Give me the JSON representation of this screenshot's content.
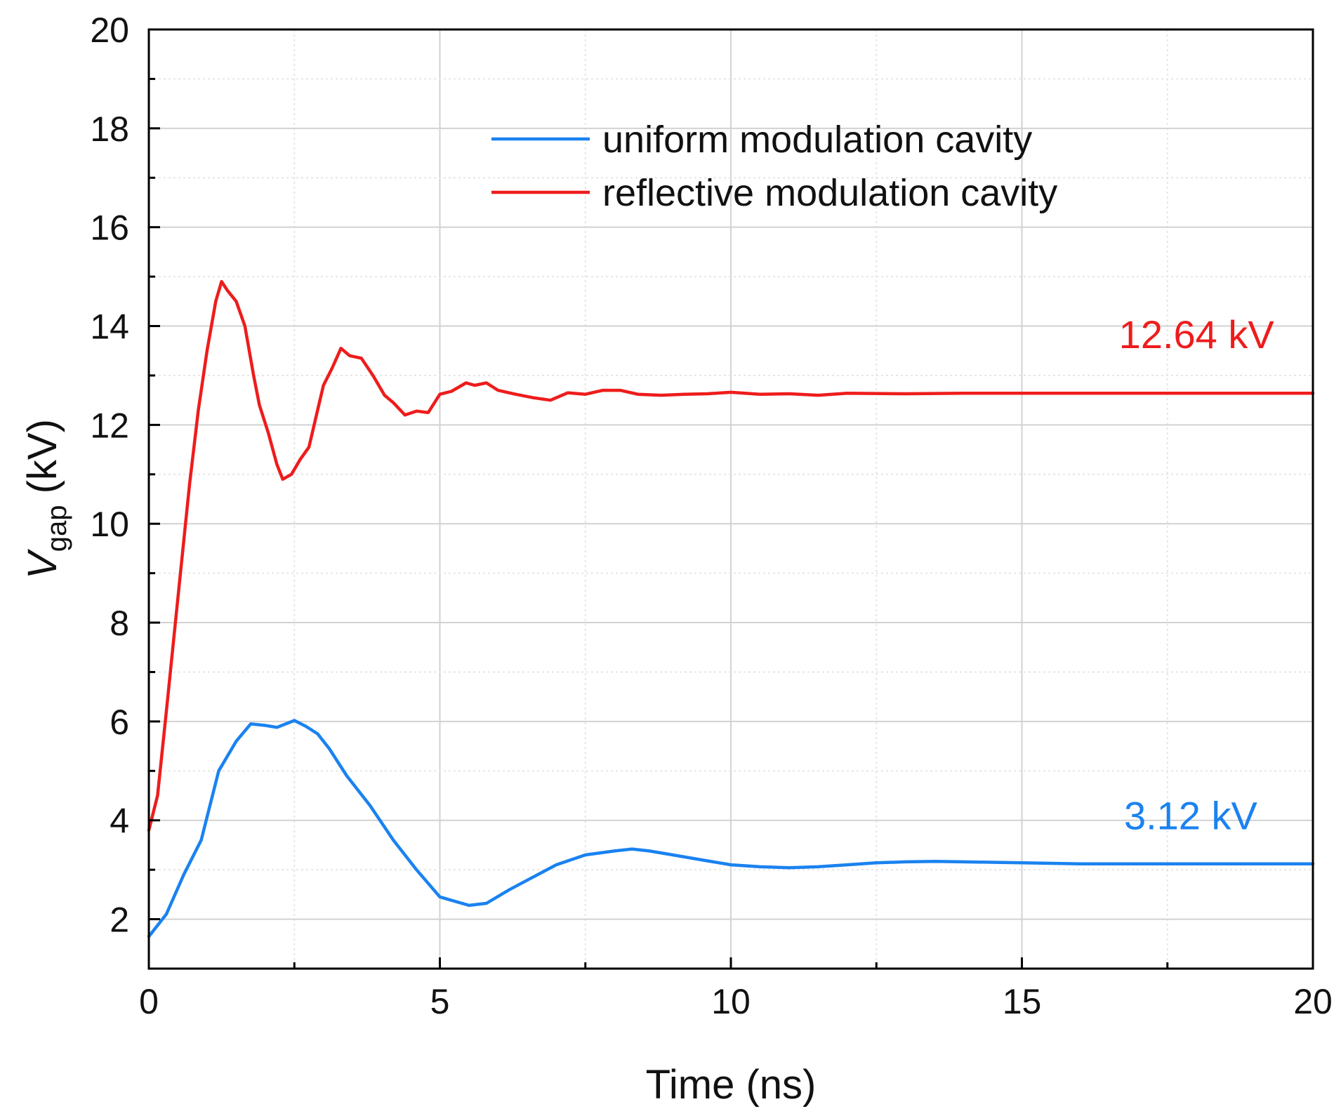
{
  "chart_data": {
    "type": "line",
    "xlabel": "Time (ns)",
    "ylabel": {
      "main": "V",
      "subscript": "gap",
      "unit": " (kV)"
    },
    "xlim": [
      0,
      20
    ],
    "ylim": [
      1,
      20
    ],
    "xticks": [
      0,
      5,
      10,
      15,
      20
    ],
    "yticks": [
      2,
      4,
      6,
      8,
      10,
      12,
      14,
      16,
      18,
      20
    ],
    "x_minor_step": 2.5,
    "y_minor_step": 1,
    "grid": true,
    "legend_position": "top-right",
    "series": [
      {
        "name": "uniform modulation cavity",
        "color": "#1a82f0",
        "points": [
          [
            0,
            1.65
          ],
          [
            0.3,
            2.1
          ],
          [
            0.6,
            2.9
          ],
          [
            0.9,
            3.6
          ],
          [
            1.2,
            5.0
          ],
          [
            1.5,
            5.6
          ],
          [
            1.75,
            5.95
          ],
          [
            2.0,
            5.92
          ],
          [
            2.2,
            5.88
          ],
          [
            2.5,
            6.02
          ],
          [
            2.7,
            5.9
          ],
          [
            2.9,
            5.75
          ],
          [
            3.1,
            5.45
          ],
          [
            3.4,
            4.9
          ],
          [
            3.8,
            4.3
          ],
          [
            4.2,
            3.6
          ],
          [
            4.6,
            3.0
          ],
          [
            5.0,
            2.45
          ],
          [
            5.5,
            2.28
          ],
          [
            5.8,
            2.32
          ],
          [
            6.2,
            2.6
          ],
          [
            6.6,
            2.85
          ],
          [
            7.0,
            3.1
          ],
          [
            7.5,
            3.3
          ],
          [
            8.0,
            3.38
          ],
          [
            8.3,
            3.42
          ],
          [
            8.6,
            3.38
          ],
          [
            9.0,
            3.3
          ],
          [
            9.5,
            3.2
          ],
          [
            10.0,
            3.1
          ],
          [
            10.5,
            3.06
          ],
          [
            11.0,
            3.04
          ],
          [
            11.5,
            3.06
          ],
          [
            12.0,
            3.1
          ],
          [
            12.5,
            3.14
          ],
          [
            13.0,
            3.16
          ],
          [
            13.5,
            3.17
          ],
          [
            14.0,
            3.16
          ],
          [
            15.0,
            3.14
          ],
          [
            16.0,
            3.12
          ],
          [
            17.0,
            3.12
          ],
          [
            18.0,
            3.12
          ],
          [
            19.0,
            3.12
          ],
          [
            20.0,
            3.12
          ]
        ]
      },
      {
        "name": "reflective modulation cavity",
        "color": "#ee1c1c",
        "points": [
          [
            0,
            3.8
          ],
          [
            0.15,
            4.5
          ],
          [
            0.3,
            6.2
          ],
          [
            0.5,
            8.5
          ],
          [
            0.7,
            10.8
          ],
          [
            0.85,
            12.3
          ],
          [
            1.0,
            13.5
          ],
          [
            1.15,
            14.5
          ],
          [
            1.25,
            14.9
          ],
          [
            1.35,
            14.72
          ],
          [
            1.5,
            14.5
          ],
          [
            1.65,
            14.0
          ],
          [
            1.8,
            13.0
          ],
          [
            1.9,
            12.4
          ],
          [
            2.05,
            11.85
          ],
          [
            2.2,
            11.2
          ],
          [
            2.3,
            10.9
          ],
          [
            2.45,
            11.0
          ],
          [
            2.6,
            11.3
          ],
          [
            2.75,
            11.55
          ],
          [
            2.9,
            12.3
          ],
          [
            3.0,
            12.8
          ],
          [
            3.15,
            13.15
          ],
          [
            3.3,
            13.55
          ],
          [
            3.45,
            13.4
          ],
          [
            3.65,
            13.35
          ],
          [
            3.85,
            13.0
          ],
          [
            4.05,
            12.6
          ],
          [
            4.2,
            12.45
          ],
          [
            4.4,
            12.2
          ],
          [
            4.6,
            12.28
          ],
          [
            4.8,
            12.25
          ],
          [
            5.0,
            12.62
          ],
          [
            5.2,
            12.68
          ],
          [
            5.45,
            12.85
          ],
          [
            5.6,
            12.8
          ],
          [
            5.8,
            12.85
          ],
          [
            6.0,
            12.7
          ],
          [
            6.3,
            12.62
          ],
          [
            6.6,
            12.55
          ],
          [
            6.9,
            12.5
          ],
          [
            7.2,
            12.65
          ],
          [
            7.5,
            12.62
          ],
          [
            7.8,
            12.7
          ],
          [
            8.1,
            12.7
          ],
          [
            8.4,
            12.62
          ],
          [
            8.8,
            12.6
          ],
          [
            9.2,
            12.62
          ],
          [
            9.6,
            12.63
          ],
          [
            10.0,
            12.66
          ],
          [
            10.5,
            12.62
          ],
          [
            11.0,
            12.63
          ],
          [
            11.5,
            12.6
          ],
          [
            12.0,
            12.64
          ],
          [
            13.0,
            12.63
          ],
          [
            14.0,
            12.64
          ],
          [
            15.0,
            12.64
          ],
          [
            16.0,
            12.64
          ],
          [
            17.0,
            12.64
          ],
          [
            18.0,
            12.64
          ],
          [
            19.0,
            12.64
          ],
          [
            20.0,
            12.64
          ]
        ]
      }
    ],
    "annotations": [
      {
        "text": "12.64 kV",
        "x": 18.0,
        "y": 13.55,
        "color": "#ee1c1c"
      },
      {
        "text": "3.12 kV",
        "x": 17.9,
        "y": 3.82,
        "color": "#1a82f0"
      }
    ]
  }
}
